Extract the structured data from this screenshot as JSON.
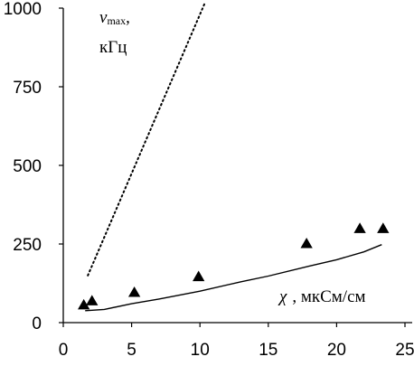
{
  "chart_data": {
    "type": "scatter",
    "title": "",
    "xlim": [
      0,
      25
    ],
    "ylim": [
      0,
      1000
    ],
    "x_ticks": [
      "0",
      "5",
      "10",
      "15",
      "20",
      "25"
    ],
    "y_ticks": [
      "0",
      "250",
      "500",
      "750",
      "1000"
    ],
    "y_label": {
      "symbol": "ν",
      "subscript": "max",
      "comma": ",",
      "unit": "кГц"
    },
    "x_label": {
      "symbol": "χ",
      "text": ", мкСм/см"
    },
    "series": [
      {
        "kind": "markers",
        "marker": "triangle",
        "points": [
          {
            "x": 1.5,
            "y": 55
          },
          {
            "x": 2.1,
            "y": 68
          },
          {
            "x": 5.2,
            "y": 95
          },
          {
            "x": 9.9,
            "y": 145
          },
          {
            "x": 17.8,
            "y": 250
          },
          {
            "x": 21.7,
            "y": 298
          },
          {
            "x": 23.4,
            "y": 298
          }
        ]
      },
      {
        "kind": "solid-line",
        "points": [
          {
            "x": 1.6,
            "y": 38
          },
          {
            "x": 3.0,
            "y": 42
          },
          {
            "x": 5.0,
            "y": 60
          },
          {
            "x": 7.0,
            "y": 75
          },
          {
            "x": 10.0,
            "y": 100
          },
          {
            "x": 13.0,
            "y": 130
          },
          {
            "x": 15.0,
            "y": 148
          },
          {
            "x": 18.0,
            "y": 180
          },
          {
            "x": 20.0,
            "y": 200
          },
          {
            "x": 22.0,
            "y": 225
          },
          {
            "x": 23.3,
            "y": 248
          }
        ]
      },
      {
        "kind": "dotted-line",
        "points": [
          {
            "x": 1.8,
            "y": 150
          },
          {
            "x": 10.4,
            "y": 1020
          }
        ]
      }
    ],
    "colors": {
      "ink": "#000000",
      "background": "#ffffff"
    }
  }
}
